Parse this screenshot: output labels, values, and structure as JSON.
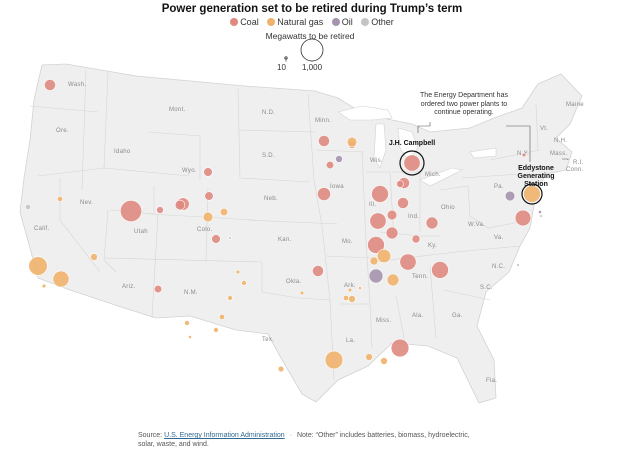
{
  "title": "Power generation set to be retired during Trump’s term",
  "legend": {
    "items": [
      {
        "label": "Coal",
        "color": "#df8a7f"
      },
      {
        "label": "Natural gas",
        "color": "#f0b36b"
      },
      {
        "label": "Oil",
        "color": "#a494ad"
      },
      {
        "label": "Other",
        "color": "#c4c4c4"
      }
    ]
  },
  "size_legend": {
    "title": "Megawatts to be retired",
    "min_label": "10",
    "max_label": "1,000"
  },
  "state_labels": [
    "Wash.",
    "Ore.",
    "Idaho",
    "Mont.",
    "Wyo.",
    "Nev.",
    "Calif.",
    "Utah",
    "Colo.",
    "Ariz.",
    "N.M.",
    "N.D.",
    "S.D.",
    "Neb.",
    "Kan.",
    "Okla.",
    "Tex.",
    "Minn.",
    "Iowa",
    "Mo.",
    "Ark.",
    "La.",
    "Wis.",
    "Ill.",
    "Mich.",
    "Ind.",
    "Ohio",
    "Ky.",
    "Tenn.",
    "Miss.",
    "Ala.",
    "Ga.",
    "Fla.",
    "S.C.",
    "N.C.",
    "Va.",
    "W.Va.",
    "Pa.",
    "N.Y.",
    "Vt.",
    "N.H.",
    "Maine",
    "Mass.",
    "R.I.",
    "Conn."
  ],
  "annotation": {
    "note": "The Energy Department has ordered two power plants to continue operating.",
    "plant_1": "J.H. Campbell",
    "plant_2": "Eddystone Generating Station"
  },
  "plants": [
    {
      "type": "Coal",
      "mw": 260
    },
    {
      "type": "Coal",
      "mw": 950
    },
    {
      "type": "Coal",
      "mw": 330
    },
    {
      "type": "Coal",
      "mw": 260
    },
    {
      "type": "Coal",
      "mw": 160
    },
    {
      "type": "Coal",
      "mw": 100
    },
    {
      "type": "Coal",
      "mw": 120
    },
    {
      "type": "Coal",
      "mw": 150
    },
    {
      "type": "Coal",
      "mw": 160
    },
    {
      "type": "Coal",
      "mw": 360
    },
    {
      "type": "Coal",
      "mw": 260
    },
    {
      "type": "Coal",
      "mw": 120
    },
    {
      "type": "Coal",
      "mw": 560
    },
    {
      "type": "Coal",
      "mw": 260
    },
    {
      "type": "Coal",
      "mw": 300
    },
    {
      "type": "Coal",
      "mw": 600
    },
    {
      "type": "Coal",
      "mw": 560
    },
    {
      "type": "Coal",
      "mw": 300
    },
    {
      "type": "Coal",
      "mw": 260
    },
    {
      "type": "Coal",
      "mw": 130
    },
    {
      "type": "Coal",
      "mw": 100
    },
    {
      "type": "Coal",
      "mw": 520
    },
    {
      "type": "Coal",
      "mw": 600
    },
    {
      "type": "Coal",
      "mw": 650
    },
    {
      "type": "Coal",
      "mw": 560
    },
    {
      "type": "Coal",
      "mw": 600
    },
    {
      "type": "Coal",
      "mw": 200
    },
    {
      "type": "Coal",
      "mw": 200
    },
    {
      "type": "Coal",
      "mw": 100
    },
    {
      "type": "Coal",
      "mw": 30
    },
    {
      "type": "Natural gas",
      "mw": 60
    },
    {
      "type": "Natural gas",
      "mw": 720
    },
    {
      "type": "Natural gas",
      "mw": 540
    },
    {
      "type": "Natural gas",
      "mw": 100
    },
    {
      "type": "Natural gas",
      "mw": 200
    },
    {
      "type": "Natural gas",
      "mw": 120
    },
    {
      "type": "Natural gas",
      "mw": 60
    },
    {
      "type": "Natural gas",
      "mw": 30
    },
    {
      "type": "Natural gas",
      "mw": 50
    },
    {
      "type": "Natural gas",
      "mw": 50
    },
    {
      "type": "Natural gas",
      "mw": 60
    },
    {
      "type": "Natural gas",
      "mw": 50
    },
    {
      "type": "Natural gas",
      "mw": 70
    },
    {
      "type": "Natural gas",
      "mw": 50
    },
    {
      "type": "Natural gas",
      "mw": 100
    },
    {
      "type": "Natural gas",
      "mw": 650
    },
    {
      "type": "Natural gas",
      "mw": 300
    },
    {
      "type": "Natural gas",
      "mw": 100
    },
    {
      "type": "Natural gas",
      "mw": 600
    },
    {
      "type": "Natural gas",
      "mw": 200
    },
    {
      "type": "Natural gas",
      "mw": 130
    },
    {
      "type": "Natural gas",
      "mw": 100
    },
    {
      "type": "Natural gas",
      "mw": 30
    },
    {
      "type": "Natural gas",
      "mw": 30
    },
    {
      "type": "Natural gas",
      "mw": 30
    },
    {
      "type": "Natural gas",
      "mw": 380
    },
    {
      "type": "Natural gas",
      "mw": 20
    },
    {
      "type": "Natural gas",
      "mw": 20
    },
    {
      "type": "Oil",
      "mw": 100
    },
    {
      "type": "Oil",
      "mw": 200
    },
    {
      "type": "Oil",
      "mw": 400
    },
    {
      "type": "Oil",
      "mw": 20
    },
    {
      "type": "Other",
      "mw": 60
    },
    {
      "type": "Other",
      "mw": 10
    },
    {
      "type": "Other",
      "mw": 10
    },
    {
      "type": "Other",
      "mw": 10
    }
  ],
  "footer": {
    "source_prefix": "Source:",
    "source_link": "U.S. Energy Information Administration",
    "note": "Note: “Other” includes batteries, biomass, hydroelectric, solar, waste, and wind."
  }
}
